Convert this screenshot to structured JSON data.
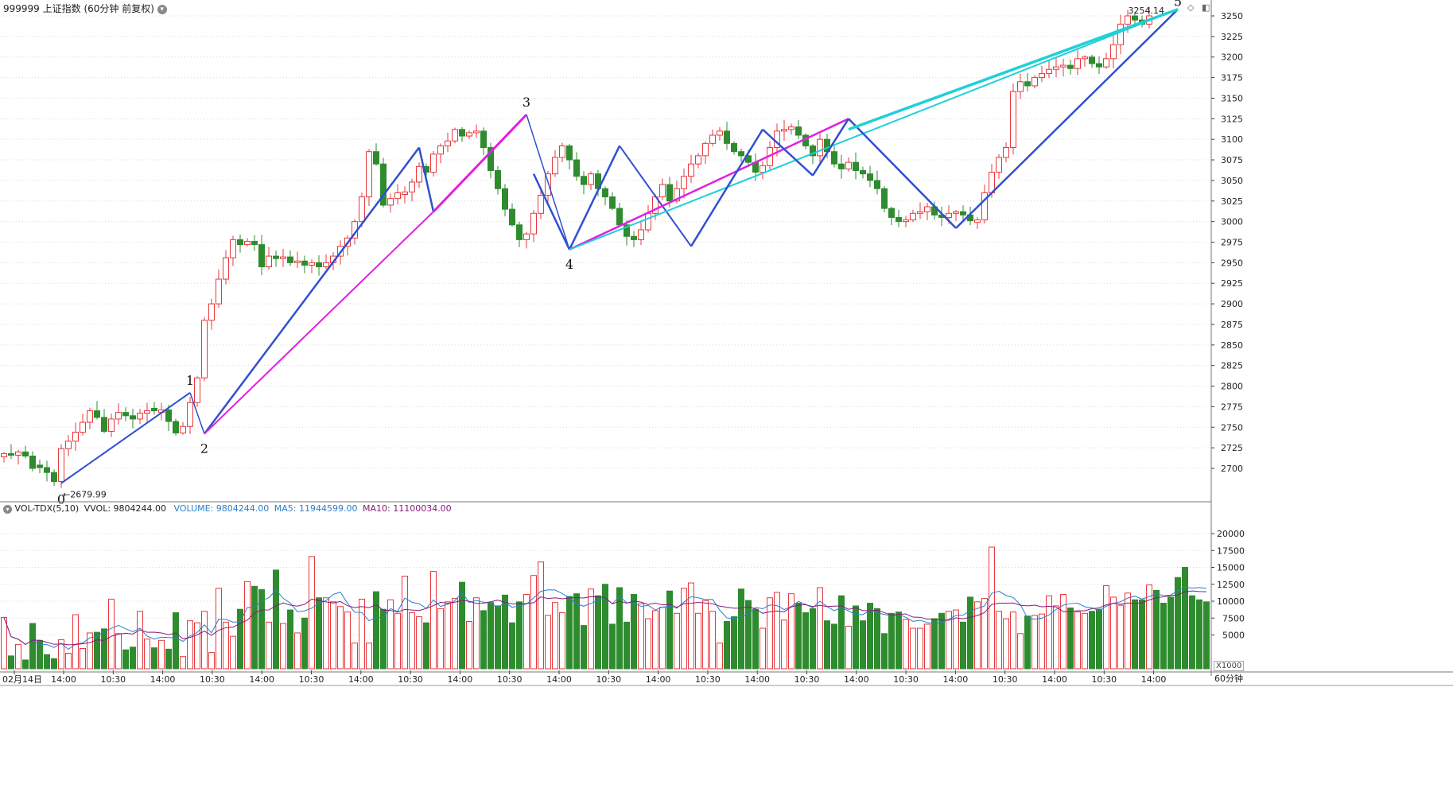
{
  "header": {
    "title": "999999 上证指数 (60分钟 前复权)",
    "vol_name": "VOL-TDX(5,10)",
    "vvol": "VVOL: 9804244.00",
    "volume": "VOLUME: 9804244.00",
    "ma5": "MA5: 11944599.00",
    "ma10": "MA10: 11100034.00"
  },
  "footer": {
    "period": "60分钟",
    "scale": "X1000"
  },
  "colors": {
    "up": "#e8383d",
    "down": "#2e8b2e",
    "grid": "#d8d8d8",
    "wave_blue": "#3050d0",
    "wave_magenta": "#e020e0",
    "wave_cyan": "#20d0d8",
    "ma5": "#2a7fd0",
    "ma10": "#8a1a7a"
  },
  "chart_data": [
    {
      "type": "candlestick",
      "price_axis": {
        "ticks": [
          2700,
          2725,
          2750,
          2775,
          2800,
          2825,
          2850,
          2875,
          2900,
          2925,
          2950,
          2975,
          3000,
          3025,
          3050,
          3075,
          3100,
          3125,
          3150,
          3175,
          3200,
          3225,
          3250
        ]
      },
      "x_labels": [
        "02月14日",
        "14:00",
        "10:30",
        "14:00",
        "10:30",
        "14:00",
        "10:30",
        "14:00",
        "10:30",
        "14:00",
        "10:30",
        "14:00",
        "10:30",
        "14:00",
        "10:30",
        "14:00",
        "10:30",
        "14:00",
        "10:30",
        "14:00",
        "10:30",
        "14:00",
        "10:30",
        "14:00"
      ],
      "annotations": {
        "low": "2679.99",
        "high": "3254.14"
      },
      "wave_labels": [
        "0",
        "1",
        "2",
        "3",
        "4",
        "5"
      ],
      "closes": [
        2718,
        2716,
        2720,
        2715,
        2700,
        2701,
        2695,
        2684,
        2724,
        2733,
        2744,
        2756,
        2770,
        2762,
        2745,
        2760,
        2768,
        2764,
        2760,
        2767,
        2770,
        2770,
        2771,
        2757,
        2743,
        2751,
        2780,
        2810,
        2880,
        2900,
        2930,
        2956,
        2978,
        2972,
        2976,
        2972,
        2945,
        2958,
        2955,
        2957,
        2950,
        2952,
        2947,
        2950,
        2945,
        2950,
        2958,
        2970,
        2980,
        3000,
        3030,
        3085,
        3070,
        3020,
        3028,
        3035,
        3036,
        3048,
        3067,
        3060,
        3082,
        3092,
        3098,
        3112,
        3104,
        3108,
        3110,
        3090,
        3062,
        3040,
        3015,
        2996,
        2978,
        2985,
        3010,
        3032,
        3058,
        3078,
        3092,
        3075,
        3055,
        3045,
        3058,
        3040,
        3030,
        3016,
        2996,
        2982,
        2978,
        2990,
        3010,
        3030,
        3045,
        3025,
        3040,
        3055,
        3070,
        3080,
        3095,
        3105,
        3110,
        3095,
        3085,
        3080,
        3072,
        3060,
        3068,
        3090,
        3110,
        3112,
        3115,
        3105,
        3092,
        3080,
        3100,
        3085,
        3070,
        3064,
        3072,
        3062,
        3058,
        3050,
        3040,
        3016,
        3005,
        3000,
        3002,
        3010,
        3012,
        3018,
        3008,
        3005,
        3010,
        3012,
        3008,
        3001,
        3002,
        3035,
        3060,
        3078,
        3090,
        3158,
        3170,
        3165,
        3175,
        3180,
        3185,
        3188,
        3190,
        3186,
        3198,
        3200,
        3192,
        3188,
        3198,
        3215,
        3240,
        3250,
        3245,
        3240,
        3250
      ]
    },
    {
      "type": "bar",
      "title": "VOL-TDX(5,10)",
      "unit": "X1000",
      "y_ticks": [
        5000,
        7500,
        10000,
        12500,
        15000,
        17500,
        20000
      ],
      "values": [
        7600,
        1900,
        3600,
        1300,
        6700,
        4200,
        2100,
        1500,
        4300,
        2300,
        8000,
        3000,
        5300,
        5400,
        5900,
        10300,
        5200,
        2800,
        3200,
        8500,
        4400,
        3100,
        4200,
        2900,
        8300,
        1800,
        7100,
        6800,
        8500,
        2400,
        11900,
        6900,
        4800,
        8800,
        12900,
        12200,
        11700,
        6900,
        14600,
        6700,
        8700,
        5300,
        7500,
        16600,
        10500,
        10500,
        9900,
        9200,
        8400,
        3800,
        10300,
        3800,
        11400,
        8800,
        10200,
        8200,
        13700,
        8300,
        7700,
        6800,
        14400,
        8900,
        9900,
        10400,
        12800,
        7000,
        10500,
        8600,
        9800,
        9300,
        10900,
        6800,
        9900,
        11000,
        13800,
        15800,
        7900,
        9800,
        8300,
        10700,
        11100,
        6400,
        11800,
        10800,
        12500,
        6600,
        12000,
        6900,
        11000,
        9600,
        7400,
        8600,
        9100,
        11500,
        8200,
        11900,
        12700,
        8200,
        10100,
        8500,
        3800,
        7000,
        7700,
        11800,
        10100,
        8800,
        6000,
        10500,
        11300,
        7200,
        11100,
        9700,
        8300,
        8900,
        12000,
        7100,
        6600,
        10800,
        6300,
        9300,
        7100,
        9700,
        8900,
        5200,
        8200,
        8400,
        7300,
        6000,
        6000,
        6600,
        7400,
        8200,
        8500,
        8700,
        6900,
        10600,
        9900,
        10400,
        18000,
        8500,
        7400,
        8400,
        5200,
        7800,
        7900,
        8100,
        10800,
        9300,
        11000,
        9000,
        8400,
        8200,
        8500,
        8800,
        12300,
        10600,
        9400,
        11200,
        10200,
        10200,
        12400,
        11600,
        9700,
        10600,
        13500,
        15000,
        10800,
        10200,
        9900
      ]
    }
  ]
}
